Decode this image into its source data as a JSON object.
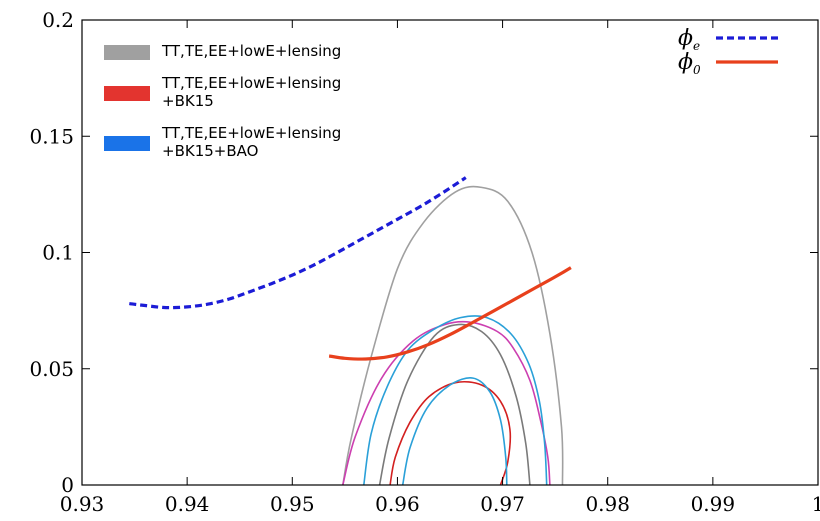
{
  "chart_data": {
    "type": "line",
    "title": "",
    "xlabel": "",
    "ylabel": "",
    "xlim": [
      0.93,
      1.0
    ],
    "ylim": [
      0,
      0.2
    ],
    "xticks": [
      0.93,
      0.94,
      0.95,
      0.96,
      0.97,
      0.98,
      0.99,
      1.0
    ],
    "xtick_labels": [
      "0.93",
      "0.94",
      "0.95",
      "0.96",
      "0.97",
      "0.98",
      "0.99",
      "1"
    ],
    "yticks": [
      0,
      0.05,
      0.1,
      0.15,
      0.2
    ],
    "ytick_labels": [
      "0",
      "0.05",
      "0.1",
      "0.15",
      "0.2"
    ],
    "grid": false,
    "series": [
      {
        "name": "ϕe",
        "label_base": "ϕ",
        "label_sub": "e",
        "style": "dashed",
        "color": "#1c1cd6",
        "x": [
          0.9345,
          0.936,
          0.938,
          0.94,
          0.942,
          0.944,
          0.946,
          0.948,
          0.95,
          0.952,
          0.954,
          0.956,
          0.958,
          0.96,
          0.962,
          0.964,
          0.9665
        ],
        "y": [
          0.078,
          0.0772,
          0.0763,
          0.0766,
          0.0778,
          0.08,
          0.0832,
          0.0866,
          0.0903,
          0.0945,
          0.0993,
          0.1043,
          0.1093,
          0.1143,
          0.1193,
          0.1248,
          0.1322
        ]
      },
      {
        "name": "ϕ0",
        "label_base": "ϕ",
        "label_sub": "0",
        "style": "solid",
        "color": "#e8401c",
        "x": [
          0.9535,
          0.955,
          0.957,
          0.959,
          0.961,
          0.963,
          0.965,
          0.967,
          0.969,
          0.971,
          0.973,
          0.975,
          0.9765
        ],
        "y": [
          0.0555,
          0.0545,
          0.0542,
          0.0551,
          0.0573,
          0.0605,
          0.0647,
          0.0695,
          0.0745,
          0.0795,
          0.0845,
          0.0895,
          0.0935
        ]
      }
    ],
    "contours": [
      {
        "legend": "TT,TE,EE+lowE+lensing",
        "color": "#a0a0a0",
        "levels": [
          {
            "x": [
              0.9548,
              0.9556,
              0.9575,
              0.96,
              0.9625,
              0.9655,
              0.968,
              0.9705,
              0.9728,
              0.9745,
              0.9756,
              0.9757
            ],
            "y": [
              0,
              0.02,
              0.055,
              0.093,
              0.113,
              0.126,
              0.128,
              0.122,
              0.1,
              0.065,
              0.025,
              0
            ]
          },
          {
            "x": [
              0.9583,
              0.9592,
              0.961,
              0.9635,
              0.9658,
              0.968,
              0.9698,
              0.9713,
              0.9722,
              0.9726
            ],
            "y": [
              0,
              0.02,
              0.045,
              0.064,
              0.069,
              0.066,
              0.056,
              0.038,
              0.018,
              0
            ]
          }
        ]
      },
      {
        "legend": "TT,TE,EE+lowE+lensing\n+BK15",
        "color": "#e3342f",
        "levels": [
          {
            "x": [
              0.9548,
              0.956,
              0.9585,
              0.9615,
              0.9645,
              0.967,
              0.9695,
              0.971,
              0.9726,
              0.9736,
              0.9743,
              0.9745
            ],
            "y": [
              0,
              0.021,
              0.046,
              0.062,
              0.069,
              0.07,
              0.066,
              0.059,
              0.045,
              0.028,
              0.012,
              0
            ]
          },
          {
            "x": [
              0.9593,
              0.9598,
              0.9612,
              0.963,
              0.9655,
              0.968,
              0.9698,
              0.9707,
              0.9705,
              0.9698
            ],
            "y": [
              0,
              0.012,
              0.027,
              0.038,
              0.044,
              0.043,
              0.036,
              0.024,
              0.01,
              0
            ]
          }
        ]
      },
      {
        "legend": "TT,TE,EE+lowE+lensing\n+BK15+BAO",
        "color": "#1a73e8",
        "levels": [
          {
            "x": [
              0.9568,
              0.9575,
              0.959,
              0.961,
              0.9635,
              0.966,
              0.9685,
              0.9708,
              0.9725,
              0.9735,
              0.974,
              0.9742
            ],
            "y": [
              0,
              0.022,
              0.042,
              0.058,
              0.067,
              0.072,
              0.072,
              0.065,
              0.052,
              0.036,
              0.018,
              0
            ]
          },
          {
            "x": [
              0.9605,
              0.9612,
              0.9628,
              0.965,
              0.9672,
              0.9688,
              0.9698,
              0.9703,
              0.9704
            ],
            "y": [
              0,
              0.016,
              0.033,
              0.043,
              0.046,
              0.04,
              0.028,
              0.012,
              0
            ]
          }
        ]
      }
    ],
    "legend_placement": "top-left",
    "line_legend_placement": "top-right"
  },
  "colors": {
    "contour_stroke_gray": "#a0a0a0",
    "contour_stroke_gray_inner": "#7a7a7a",
    "contour_stroke_red": "#d32020",
    "contour_stroke_magenta": "#cc3fb0",
    "contour_stroke_blue": "#2aa0d8"
  }
}
